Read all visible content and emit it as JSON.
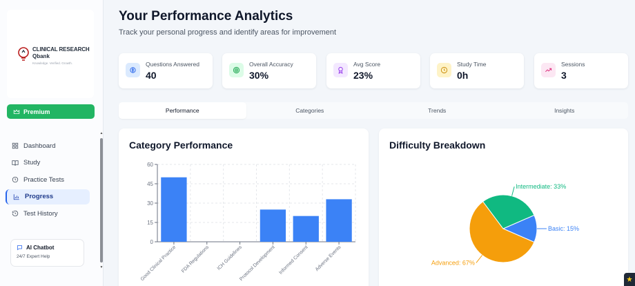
{
  "sidebar": {
    "logo": {
      "line1": "CLINICAL RESEARCH",
      "line2": "Qbank",
      "tagline": "Knowledge. Verified. Growth."
    },
    "premium_label": "Premium",
    "nav": [
      {
        "label": "Dashboard",
        "icon": "grid-icon"
      },
      {
        "label": "Study",
        "icon": "book-icon"
      },
      {
        "label": "Practice Tests",
        "icon": "clock-icon"
      },
      {
        "label": "Progress",
        "icon": "bar-chart-icon"
      },
      {
        "label": "Test History",
        "icon": "history-icon"
      }
    ],
    "active_item": "Progress",
    "chatbot": {
      "title": "AI Chatbot",
      "subtitle": "24/7 Expert Help"
    }
  },
  "header": {
    "title": "Your Performance Analytics",
    "subtitle": "Track your personal progress and identify areas for improvement"
  },
  "stats": [
    {
      "label": "Questions Answered",
      "value": "40",
      "icon": "brain-icon",
      "color": "#2563eb",
      "bg": "#dbeafe"
    },
    {
      "label": "Overall Accuracy",
      "value": "30%",
      "icon": "target-icon",
      "color": "#16a34a",
      "bg": "#dcfce7"
    },
    {
      "label": "Avg Score",
      "value": "23%",
      "icon": "award-icon",
      "color": "#9333ea",
      "bg": "#f3e8ff"
    },
    {
      "label": "Study Time",
      "value": "0h",
      "icon": "clock-icon",
      "color": "#ca8a04",
      "bg": "#fef3c7"
    },
    {
      "label": "Sessions",
      "value": "3",
      "icon": "trending-up-icon",
      "color": "#db2777",
      "bg": "#fce7f3"
    }
  ],
  "tabs": [
    "Performance",
    "Categories",
    "Trends",
    "Insights"
  ],
  "active_tab": "Performance",
  "category_card": {
    "title": "Category Performance"
  },
  "difficulty_card": {
    "title": "Difficulty Breakdown"
  },
  "chart_data": [
    {
      "type": "bar",
      "title": "Category Performance",
      "categories": [
        "Good Clinical Practice",
        "FDA Regulations",
        "ICH Guidelines",
        "Protocol Development",
        "Informed Consent",
        "Adverse Events"
      ],
      "values": [
        50,
        0,
        0,
        25,
        20,
        33
      ],
      "ylim": [
        0,
        60
      ],
      "yticks": [
        0,
        15,
        30,
        45,
        60
      ],
      "grid": true,
      "color": "#3b82f6"
    },
    {
      "type": "pie",
      "title": "Difficulty Breakdown",
      "slices": [
        {
          "label": "Basic: 15%",
          "value": 15,
          "color": "#3b82f6"
        },
        {
          "label": "Advanced: 67%",
          "value": 67,
          "color": "#f59e0b"
        },
        {
          "label": "Intermediate: 33%",
          "value": 33,
          "color": "#10b981"
        }
      ]
    }
  ]
}
